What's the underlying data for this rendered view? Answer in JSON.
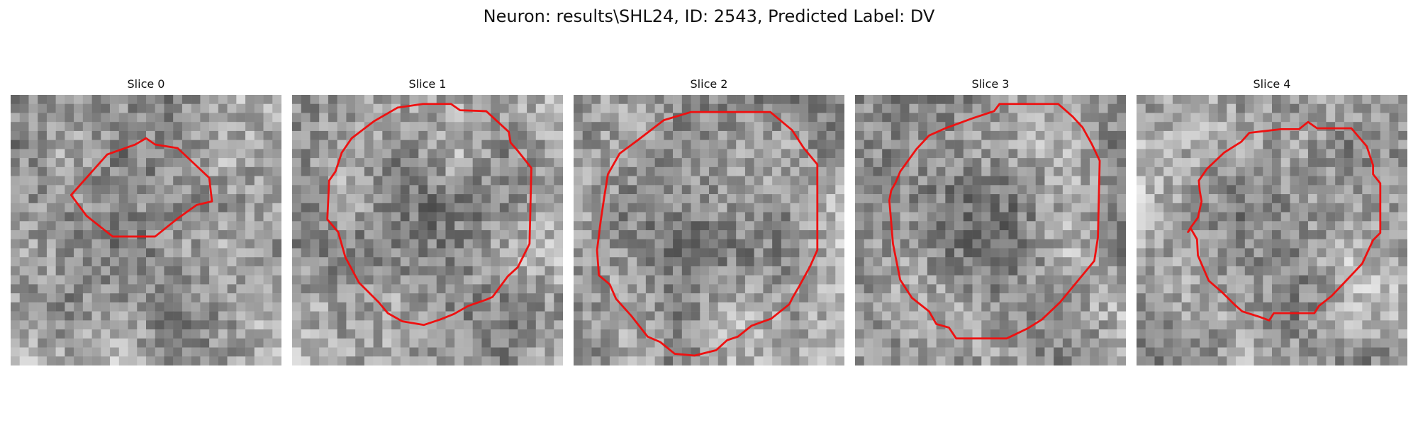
{
  "figure": {
    "title": "Neuron: results\\SHL24, ID: 2543, Predicted Label: DV"
  },
  "contour_color": "#ee1111",
  "panels": [
    {
      "title": "Slice 0"
    },
    {
      "title": "Slice 1"
    },
    {
      "title": "Slice 2"
    },
    {
      "title": "Slice 3"
    },
    {
      "title": "Slice 4"
    }
  ]
}
